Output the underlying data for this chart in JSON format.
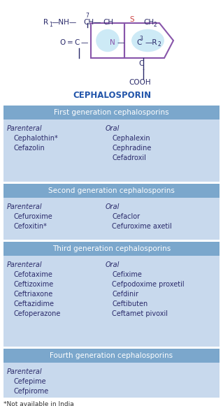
{
  "title": "CEPHALOSPORIN",
  "bg_color": "#ffffff",
  "header_bg": "#7ba7cc",
  "content_bg": "#c8d9ed",
  "header_text_color": "#ffffff",
  "content_text_color": "#2a2a6a",
  "footnote": "*Not available in India",
  "ring_fill": "#a8cce0",
  "ring_edge": "#8855aa",
  "sections": [
    {
      "header": "First generation cephalosporins",
      "parenteral": [
        "Cephalothin*",
        "Cefazolin"
      ],
      "oral": [
        "Cephalexin",
        "Cephradine",
        "Cefadroxil"
      ]
    },
    {
      "header": "Second generation cephalosporins",
      "parenteral": [
        "Cefuroxime",
        "Cefoxitin*"
      ],
      "oral": [
        "Cefaclor",
        "Cefuroxime axetil"
      ]
    },
    {
      "header": "Third generation cephalosporins",
      "parenteral": [
        "Cefotaxime",
        "Ceftizoxime",
        "Ceftriaxone",
        "Ceftazidime",
        "Cefoperazone"
      ],
      "oral": [
        "Cefixime",
        "Cefpodoxime proxetil",
        "Cefdinir",
        "Ceftibuten",
        "Ceftamet pivoxil"
      ]
    },
    {
      "header": "Fourth generation cephalosporins",
      "parenteral": [
        "Cefepime",
        "Cefpirome"
      ],
      "oral": []
    }
  ]
}
